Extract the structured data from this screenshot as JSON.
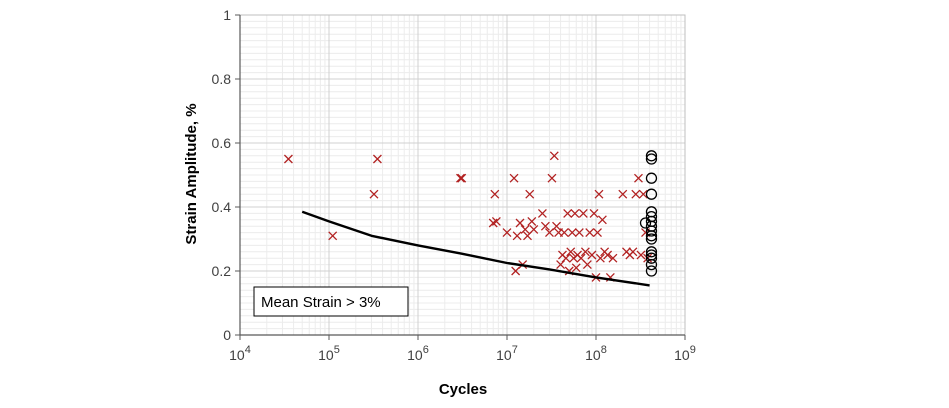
{
  "chart_data": {
    "type": "scatter",
    "title": "",
    "xlabel": "Cycles",
    "ylabel": "Strain Amplitude, %",
    "xscale": "log",
    "xlim": [
      10000,
      1000000000
    ],
    "ylim": [
      0,
      1
    ],
    "x_tick_labels": [
      {
        "base": "10",
        "exp": "4"
      },
      {
        "base": "10",
        "exp": "5"
      },
      {
        "base": "10",
        "exp": "6"
      },
      {
        "base": "10",
        "exp": "7"
      },
      {
        "base": "10",
        "exp": "8"
      },
      {
        "base": "10",
        "exp": "9"
      }
    ],
    "y_ticks": [
      "0",
      "0.2",
      "0.4",
      "0.6",
      "0.8",
      "1"
    ],
    "grid": true,
    "annotation": "Mean Strain > 3%",
    "annotation_position": "bottom-left",
    "colors": {
      "failure": "#b22222",
      "runout": "#000000",
      "curve": "#000000"
    },
    "series": [
      {
        "marker": "x",
        "points": [
          [
            35000,
            0.55
          ],
          [
            110000,
            0.31
          ],
          [
            320000,
            0.44
          ],
          [
            350000,
            0.55
          ],
          [
            3000000,
            0.49
          ],
          [
            3100000,
            0.49
          ],
          [
            7000000,
            0.35
          ],
          [
            7300000,
            0.44
          ],
          [
            7600000,
            0.355
          ],
          [
            10000000,
            0.32
          ],
          [
            12000000,
            0.49
          ],
          [
            12500000,
            0.2
          ],
          [
            13000000,
            0.31
          ],
          [
            14000000,
            0.35
          ],
          [
            15000000,
            0.22
          ],
          [
            16000000,
            0.33
          ],
          [
            17000000,
            0.31
          ],
          [
            18000000,
            0.44
          ],
          [
            19000000,
            0.355
          ],
          [
            20000000,
            0.33
          ],
          [
            25000000,
            0.38
          ],
          [
            27000000,
            0.34
          ],
          [
            30000000,
            0.32
          ],
          [
            32000000,
            0.49
          ],
          [
            34000000,
            0.56
          ],
          [
            36000000,
            0.34
          ],
          [
            38000000,
            0.32
          ],
          [
            40000000,
            0.22
          ],
          [
            42000000,
            0.25
          ],
          [
            44000000,
            0.32
          ],
          [
            46000000,
            0.24
          ],
          [
            48000000,
            0.38
          ],
          [
            50000000,
            0.2
          ],
          [
            52000000,
            0.26
          ],
          [
            54000000,
            0.32
          ],
          [
            56000000,
            0.24
          ],
          [
            58000000,
            0.38
          ],
          [
            60000000,
            0.21
          ],
          [
            62000000,
            0.25
          ],
          [
            65000000,
            0.32
          ],
          [
            68000000,
            0.24
          ],
          [
            72000000,
            0.38
          ],
          [
            76000000,
            0.26
          ],
          [
            80000000,
            0.22
          ],
          [
            85000000,
            0.32
          ],
          [
            90000000,
            0.25
          ],
          [
            95000000,
            0.38
          ],
          [
            100000000,
            0.18
          ],
          [
            104000000,
            0.32
          ],
          [
            108000000,
            0.44
          ],
          [
            112000000,
            0.24
          ],
          [
            118000000,
            0.36
          ],
          [
            125000000,
            0.26
          ],
          [
            135000000,
            0.25
          ],
          [
            145000000,
            0.18
          ],
          [
            155000000,
            0.24
          ],
          [
            200000000,
            0.44
          ],
          [
            220000000,
            0.26
          ],
          [
            240000000,
            0.25
          ],
          [
            260000000,
            0.26
          ],
          [
            280000000,
            0.44
          ],
          [
            300000000,
            0.49
          ],
          [
            320000000,
            0.25
          ],
          [
            340000000,
            0.44
          ],
          [
            360000000,
            0.32
          ],
          [
            380000000,
            0.24
          ]
        ]
      },
      {
        "marker": "circle",
        "points": [
          [
            360000000,
            0.35
          ],
          [
            420000000,
            0.56
          ],
          [
            420000000,
            0.55
          ],
          [
            420000000,
            0.49
          ],
          [
            420000000,
            0.44
          ],
          [
            420000000,
            0.385
          ],
          [
            420000000,
            0.37
          ],
          [
            420000000,
            0.355
          ],
          [
            420000000,
            0.34
          ],
          [
            420000000,
            0.325
          ],
          [
            420000000,
            0.31
          ],
          [
            420000000,
            0.3
          ],
          [
            420000000,
            0.26
          ],
          [
            420000000,
            0.25
          ],
          [
            420000000,
            0.24
          ],
          [
            420000000,
            0.22
          ],
          [
            420000000,
            0.2
          ]
        ]
      },
      {
        "marker": "line",
        "points": [
          [
            50000,
            0.385
          ],
          [
            100000,
            0.355
          ],
          [
            300000,
            0.31
          ],
          [
            1000000,
            0.28
          ],
          [
            3000000,
            0.255
          ],
          [
            10000000,
            0.225
          ],
          [
            30000000,
            0.205
          ],
          [
            100000000,
            0.18
          ],
          [
            400000000,
            0.155
          ]
        ]
      }
    ]
  }
}
